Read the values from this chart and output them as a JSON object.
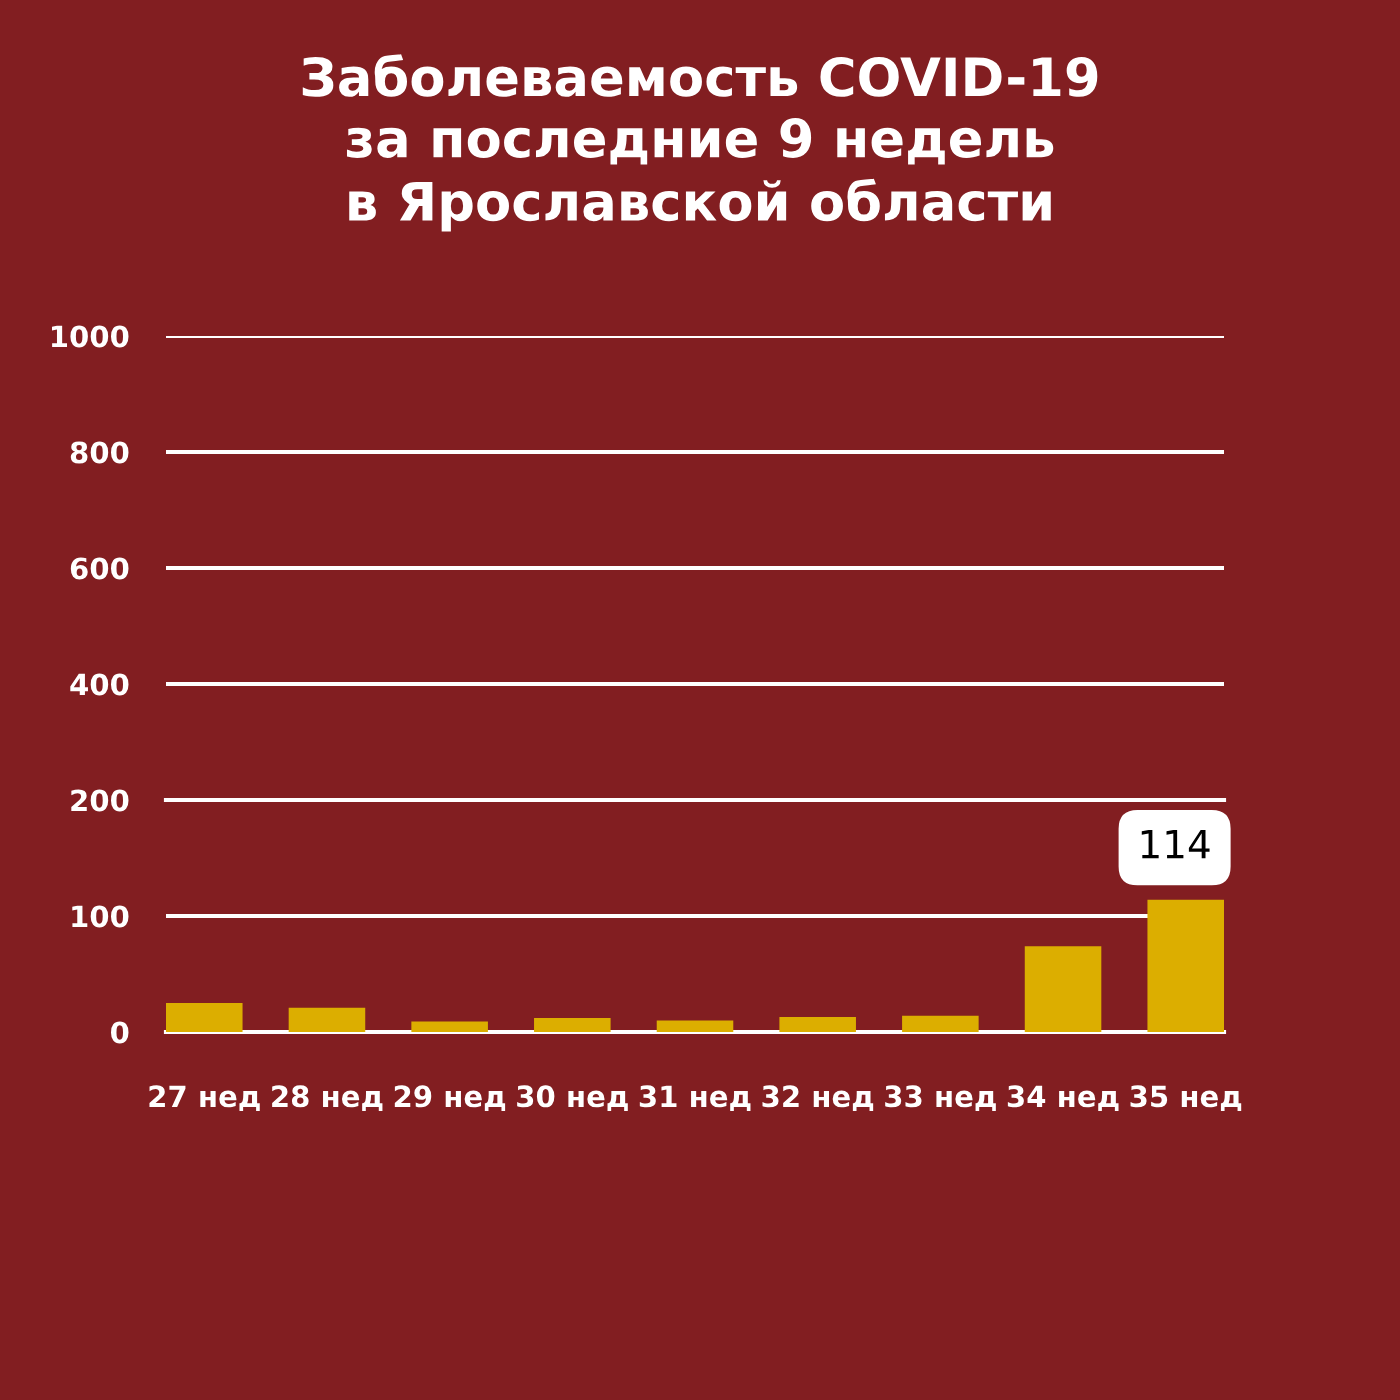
{
  "chart_data": [
    {
      "type": "bar",
      "title": "Заболеваемость COVID-19\nза последние 9 недель\nв Ярославской области",
      "categories": [
        null,
        null,
        null,
        null,
        null,
        null,
        null,
        null,
        null
      ],
      "values": [
        null,
        null,
        null,
        null,
        null,
        null,
        null,
        null,
        null
      ],
      "color": "#dcae00",
      "ylim": [
        200,
        1000
      ],
      "yticks": [
        400,
        600,
        800,
        1000
      ],
      "grid": "y"
    },
    {
      "type": "bar",
      "categories": [
        "27 нед",
        "28 нед",
        "29 нед",
        "30 нед",
        "31 нед",
        "32 нед",
        "33 нед",
        "34 нед",
        "35 нед"
      ],
      "values": [
        25,
        21,
        9,
        12,
        10,
        13,
        14,
        74,
        114
      ],
      "color": "#dcae00",
      "value_labels": [
        null,
        null,
        null,
        null,
        null,
        null,
        null,
        null,
        "114"
      ],
      "ylim": [
        0,
        200
      ],
      "yticks": [
        0,
        100,
        200
      ],
      "grid": "y"
    }
  ]
}
